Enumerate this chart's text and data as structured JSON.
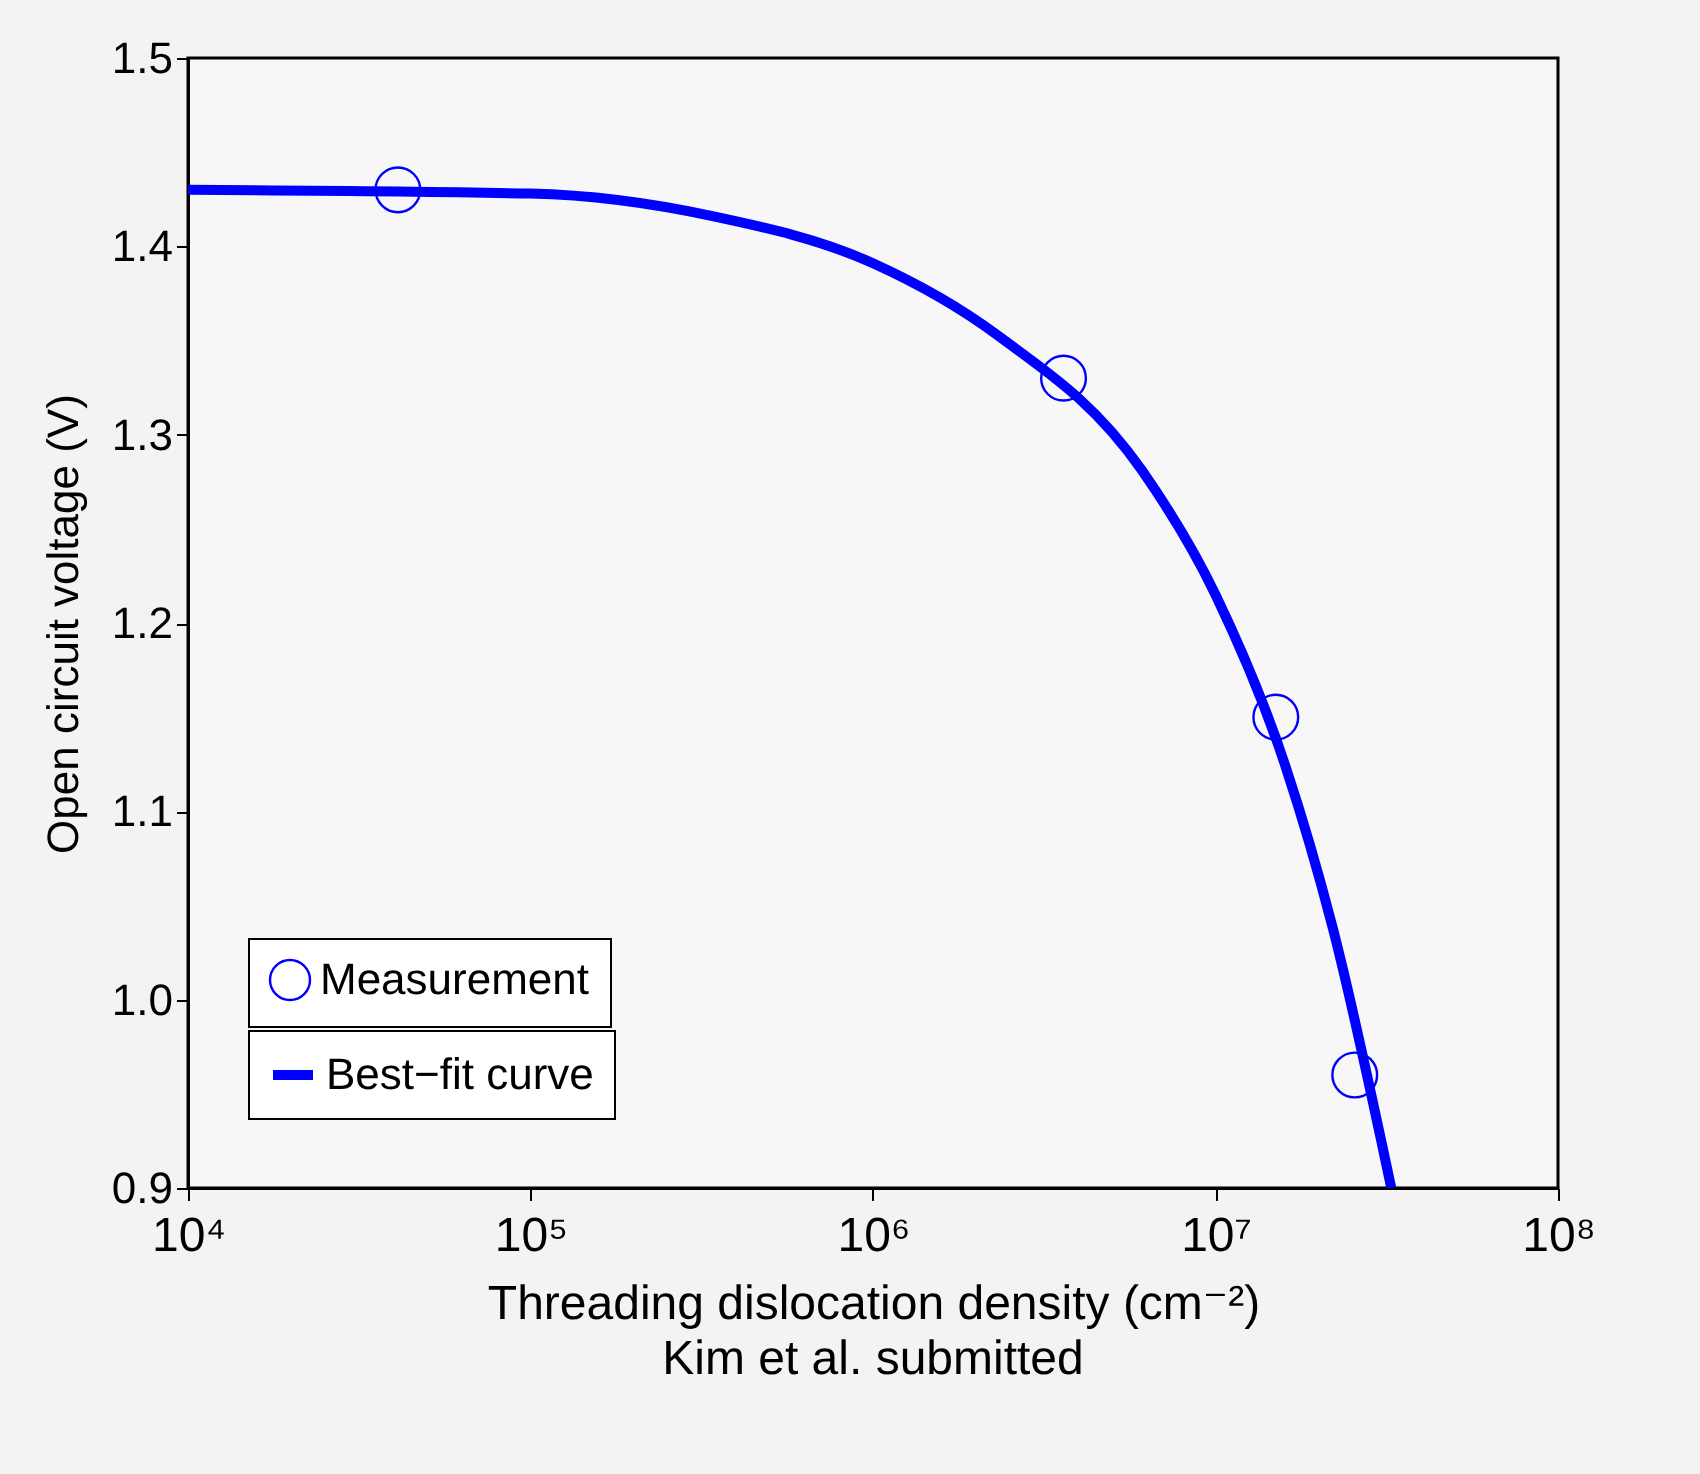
{
  "chart_data": {
    "type": "line",
    "xlabel": "Threading dislocation density (cm⁻²)",
    "ylabel": "Open circuit voltage (V)",
    "annotations": [
      "Kim et al.  submitted"
    ],
    "log": "x",
    "grid": false,
    "legend": "bottom left",
    "xlim": [
      10000,
      100000000
    ],
    "xticks": [
      {
        "value": 10000,
        "label": "10⁴"
      },
      {
        "value": 100000,
        "label": "10⁵"
      },
      {
        "value": 1000000,
        "label": "10⁶"
      },
      {
        "value": 10000000,
        "label": "10⁷"
      },
      {
        "value": 100000000,
        "label": "10⁸"
      }
    ],
    "ylim": [
      0.9,
      1.5
    ],
    "yticks": [
      0.9,
      {
        "value": 1,
        "label": "1.0"
      },
      1.1,
      1.2,
      1.3,
      1.4,
      1.5
    ],
    "series": [
      {
        "name": "Measurement",
        "type": "scatter",
        "marker": "circle",
        "color": "#0000ff",
        "x": [
          41000,
          3600000,
          15000000,
          25500000
        ],
        "values": [
          1.43,
          1.33,
          1.15,
          0.96
        ]
      },
      {
        "name": "Best−fit curve",
        "type": "line",
        "color": "#0000ff",
        "x": [
          10000,
          100000,
          340000,
          1000000,
          2300000,
          6100000,
          10000000,
          16000000,
          22000000,
          32600000
        ],
        "values": [
          1.43,
          1.428,
          1.416,
          1.391,
          1.353,
          1.281,
          1.215,
          1.124,
          1.038,
          0.9
        ]
      }
    ]
  }
}
